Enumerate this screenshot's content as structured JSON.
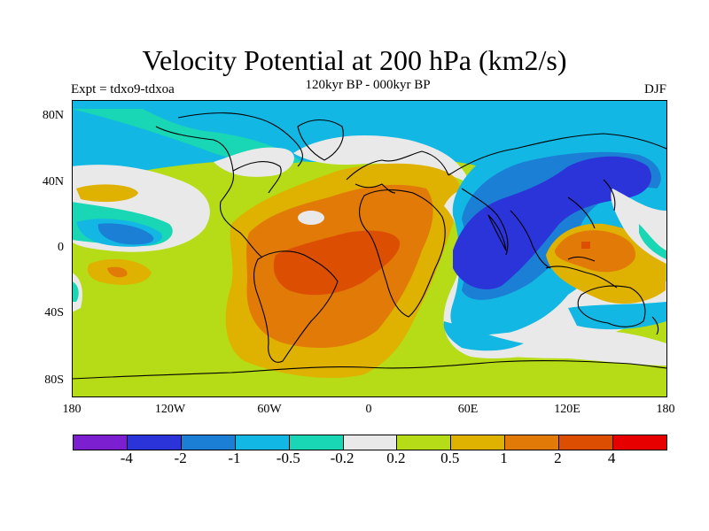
{
  "title": "Velocity Potential at 200 hPa (km2/s)",
  "subtitle": "120kyr BP - 000kyr BP",
  "left_label": "Expt = tdxo9-tdxoa",
  "right_label": "DJF",
  "lat_ticks": [
    "80N",
    "40N",
    "0",
    "40S",
    "80S"
  ],
  "lon_ticks": [
    "180",
    "120W",
    "60W",
    "0",
    "60E",
    "120E",
    "180"
  ],
  "colorbar": {
    "colors": [
      "#7b1fd0",
      "#2a34d8",
      "#1b7fd6",
      "#12b8e3",
      "#19d6b4",
      "#e9e9e9",
      "#b5dc16",
      "#dfb100",
      "#e17a06",
      "#dc4e02",
      "#e60000"
    ],
    "labels": [
      "-4",
      "-2",
      "-1",
      "-0.5",
      "-0.2",
      "0.2",
      "0.5",
      "1",
      "2",
      "4"
    ]
  }
}
